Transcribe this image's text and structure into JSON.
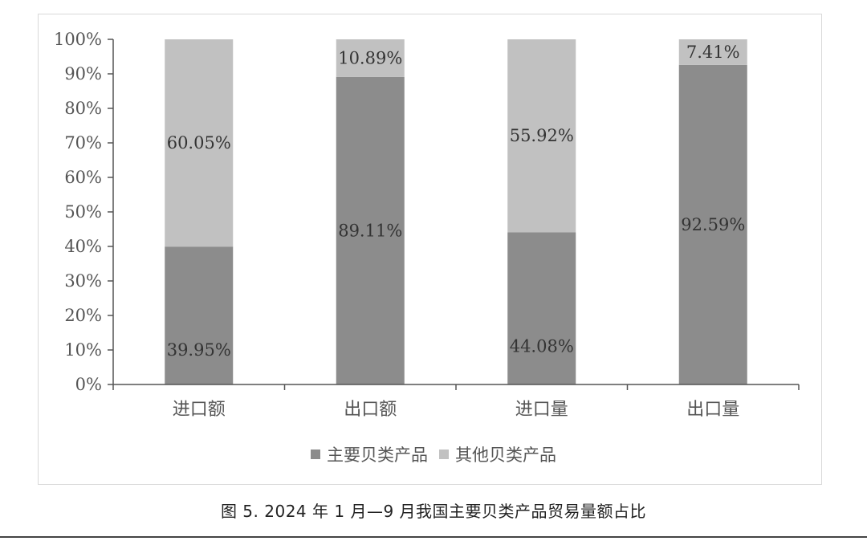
{
  "caption": "图 5. 2024 年 1 月—9 月我国主要贝类产品贸易量额占比",
  "chart_data": {
    "type": "bar",
    "stacked": true,
    "percent": true,
    "categories": [
      "进口额",
      "出口额",
      "进口量",
      "出口量"
    ],
    "series": [
      {
        "name": "主要贝类产品",
        "values": [
          39.95,
          89.11,
          44.08,
          92.59
        ],
        "labels": [
          "39.95%",
          "89.11%",
          "44.08%",
          "92.59%"
        ],
        "color": "#8c8c8c"
      },
      {
        "name": "其他贝类产品",
        "values": [
          60.05,
          10.89,
          55.92,
          7.41
        ],
        "labels": [
          "60.05%",
          "10.89%",
          "55.92%",
          "7.41%"
        ],
        "color": "#c1c1c1"
      }
    ],
    "yticks": [
      "0%",
      "10%",
      "20%",
      "30%",
      "40%",
      "50%",
      "60%",
      "70%",
      "80%",
      "90%",
      "100%"
    ],
    "ylim": [
      0,
      100
    ],
    "xlabel": "",
    "ylabel": "",
    "grid": false,
    "legend": "bottom"
  }
}
